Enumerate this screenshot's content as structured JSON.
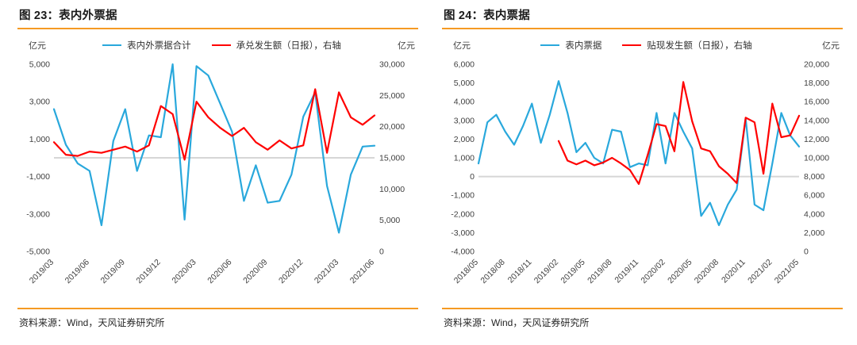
{
  "page": {
    "background": "#FFFFFF"
  },
  "accent": {
    "orange_line": "#F59A23",
    "zero_gridline": "#D6D6D6"
  },
  "chart_data": [
    {
      "type": "line",
      "title": "图 23：表内外票据",
      "unit_left": "亿元",
      "unit_right": "亿元",
      "source": "资料来源：Wind，天风证券研究所",
      "legend_position": "top",
      "grid": "zero-line-only",
      "categories": [
        "2019/03",
        "2019/04",
        "2019/05",
        "2019/06",
        "2019/07",
        "2019/08",
        "2019/09",
        "2019/10",
        "2019/11",
        "2019/12",
        "2020/01",
        "2020/02",
        "2020/03",
        "2020/04",
        "2020/05",
        "2020/06",
        "2020/07",
        "2020/08",
        "2020/09",
        "2020/10",
        "2020/11",
        "2020/12",
        "2021/01",
        "2021/02",
        "2021/03",
        "2021/04",
        "2021/05",
        "2021/06"
      ],
      "x_tick_indices": [
        0,
        3,
        6,
        9,
        12,
        15,
        18,
        21,
        24,
        27
      ],
      "x_tick_labels": [
        "2019/03",
        "2019/06",
        "2019/09",
        "2019/12",
        "2020/03",
        "2020/06",
        "2020/09",
        "2020/12",
        "2021/03",
        "2021/06"
      ],
      "left_axis": {
        "min": -5000,
        "max": 5000,
        "tick_values": [
          5000,
          3000,
          1000,
          -1000,
          -3000,
          -5000
        ],
        "tick_labels": [
          "5,000",
          "3,000",
          "1,000",
          "-1,000",
          "-3,000",
          "-5,000"
        ]
      },
      "right_axis": {
        "min": 0,
        "max": 30000,
        "tick_values": [
          30000,
          25000,
          20000,
          15000,
          10000,
          5000,
          0
        ],
        "tick_labels": [
          "30,000",
          "25,000",
          "20,000",
          "15,000",
          "10,000",
          "5,000",
          "0"
        ]
      },
      "series": [
        {
          "name": "表内外票据合计",
          "axis": "left",
          "color": "#29A8DC",
          "values": [
            2600,
            700,
            -300,
            -700,
            -3600,
            900,
            2600,
            -700,
            1200,
            1100,
            5000,
            -3300,
            4900,
            4400,
            2900,
            1400,
            -2300,
            -400,
            -2400,
            -2300,
            -900,
            2200,
            3500,
            -1500,
            -4000,
            -900,
            600,
            650
          ]
        },
        {
          "name": "承兑发生额（日报），右轴",
          "axis": "right",
          "color": "#FF0000",
          "values": [
            17500,
            15500,
            15300,
            16000,
            15800,
            16300,
            16800,
            16000,
            17000,
            23300,
            22000,
            14700,
            24000,
            21500,
            19800,
            18500,
            19800,
            17500,
            16300,
            17800,
            16500,
            17000,
            26000,
            15800,
            25500,
            21500,
            20300,
            21800
          ]
        }
      ]
    },
    {
      "type": "line",
      "title": "图 24：表内票据",
      "unit_left": "亿元",
      "unit_right": "亿元",
      "source": "资料来源：Wind，天风证券研究所",
      "legend_position": "top",
      "grid": "zero-line-only",
      "categories": [
        "2018/05",
        "2018/06",
        "2018/07",
        "2018/08",
        "2018/09",
        "2018/10",
        "2018/11",
        "2018/12",
        "2019/01",
        "2019/02",
        "2019/03",
        "2019/04",
        "2019/05",
        "2019/06",
        "2019/07",
        "2019/08",
        "2019/09",
        "2019/10",
        "2019/11",
        "2019/12",
        "2020/01",
        "2020/02",
        "2020/03",
        "2020/04",
        "2020/05",
        "2020/06",
        "2020/07",
        "2020/08",
        "2020/09",
        "2020/10",
        "2020/11",
        "2020/12",
        "2021/01",
        "2021/02",
        "2021/03",
        "2021/04",
        "2021/05"
      ],
      "x_tick_indices": [
        0,
        3,
        6,
        9,
        12,
        15,
        18,
        21,
        24,
        27,
        30,
        33,
        36
      ],
      "x_tick_labels": [
        "2018/05",
        "2018/08",
        "2018/11",
        "2019/02",
        "2019/05",
        "2019/08",
        "2019/11",
        "2020/02",
        "2020/05",
        "2020/08",
        "2020/11",
        "2021/02",
        "2021/05"
      ],
      "left_axis": {
        "min": -4000,
        "max": 6000,
        "tick_values": [
          6000,
          5000,
          4000,
          3000,
          2000,
          1000,
          0,
          -1000,
          -2000,
          -3000,
          -4000
        ],
        "tick_labels": [
          "6,000",
          "5,000",
          "4,000",
          "3,000",
          "2,000",
          "1,000",
          "0",
          "-1,000",
          "-2,000",
          "-3,000",
          "-4,000"
        ]
      },
      "right_axis": {
        "min": 0,
        "max": 20000,
        "tick_values": [
          20000,
          18000,
          16000,
          14000,
          12000,
          10000,
          8000,
          6000,
          4000,
          2000,
          0
        ],
        "tick_labels": [
          "20,000",
          "18,000",
          "16,000",
          "14,000",
          "12,000",
          "10,000",
          "8,000",
          "6,000",
          "4,000",
          "2,000",
          "0"
        ]
      },
      "series": [
        {
          "name": "表内票据",
          "axis": "left",
          "color": "#29A8DC",
          "values": [
            700,
            2900,
            3300,
            2400,
            1700,
            2700,
            3900,
            1800,
            3300,
            5100,
            3400,
            1300,
            1800,
            1000,
            700,
            2500,
            2400,
            500,
            700,
            600,
            3400,
            700,
            3400,
            2400,
            1500,
            -2100,
            -1400,
            -2600,
            -1500,
            -700,
            3100,
            -1500,
            -1800,
            700,
            3400,
            2200,
            1600
          ]
        },
        {
          "name": "贴现发生额（日报），右轴",
          "axis": "right",
          "color": "#FF0000",
          "values": [
            null,
            null,
            null,
            null,
            null,
            null,
            null,
            null,
            null,
            11800,
            9700,
            9300,
            9700,
            9200,
            9500,
            10000,
            9400,
            8700,
            7200,
            10300,
            13600,
            13400,
            10700,
            18100,
            13900,
            11000,
            10700,
            9100,
            8300,
            7300,
            14300,
            13800,
            8300,
            15800,
            12200,
            12400,
            14500
          ]
        }
      ]
    }
  ]
}
